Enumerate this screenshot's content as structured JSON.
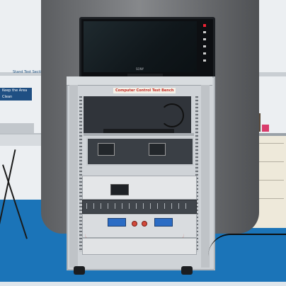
{
  "scene": {
    "rack_label": "Computer Control Test Bench",
    "sign_text": "Keep the Area Clean",
    "shelf_sign_text": "Stand Test Section",
    "tv_brand": "SONY"
  },
  "colors": {
    "floor": "#1b74b8",
    "backdrop": "#6e7073",
    "rack": "#cfd3d7",
    "display": "#2b6cc4"
  }
}
